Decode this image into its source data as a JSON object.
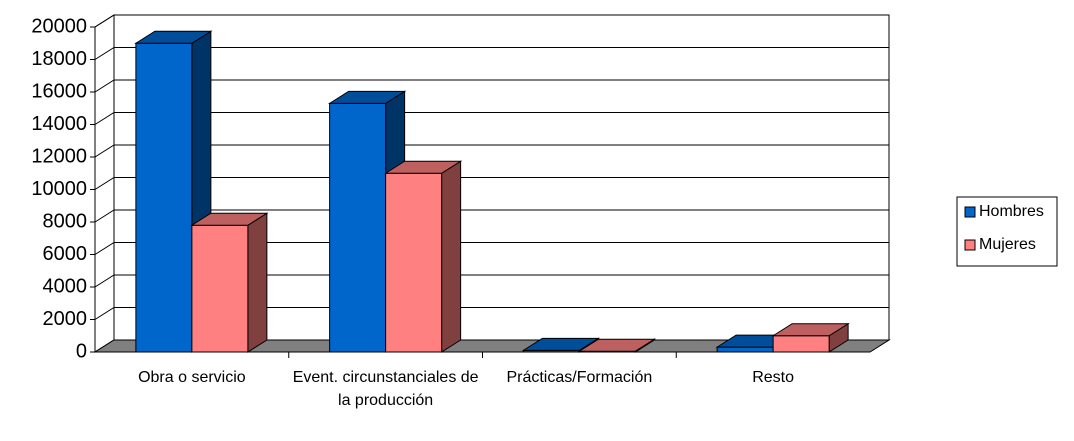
{
  "chart_data": {
    "type": "bar3d",
    "categories": [
      "Obra o servicio",
      "Event. circunstanciales de la producción",
      "Prácticas/Formación",
      "Resto"
    ],
    "series": [
      {
        "name": "Hombres",
        "color": "#0066cc",
        "values": [
          19000,
          15300,
          100,
          300
        ]
      },
      {
        "name": "Mujeres",
        "color": "#ff8080",
        "values": [
          7800,
          11000,
          50,
          1000
        ]
      }
    ],
    "ylim": [
      0,
      20000
    ],
    "yticks": [
      0,
      2000,
      4000,
      6000,
      8000,
      10000,
      12000,
      14000,
      16000,
      18000,
      20000
    ],
    "grid": true,
    "legend": "right"
  }
}
